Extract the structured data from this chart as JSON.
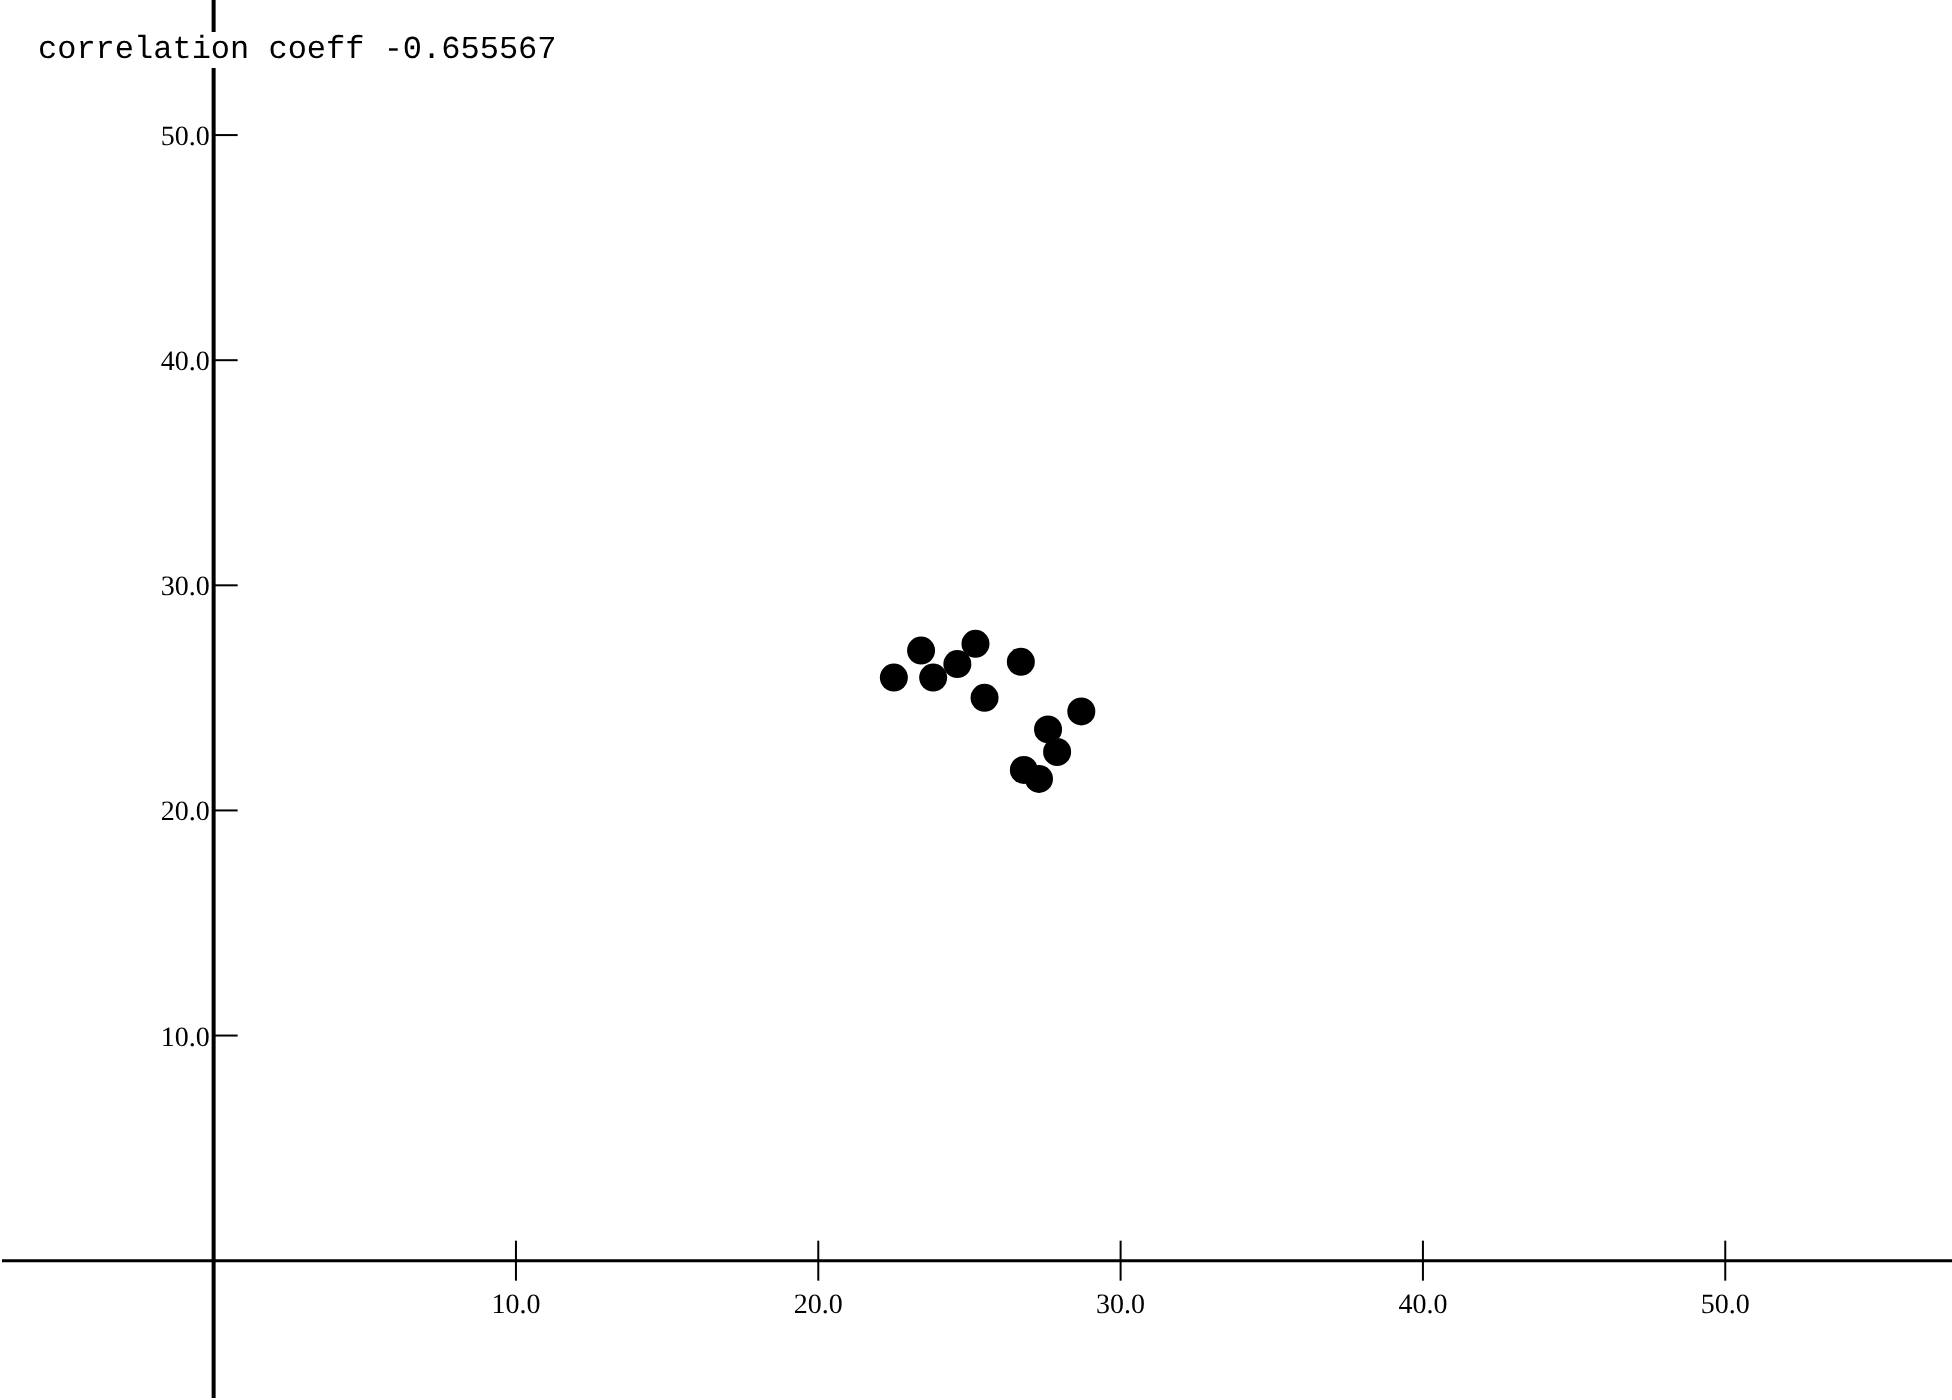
{
  "chart_data": {
    "type": "scatter",
    "title": "correlation coeff -0.655567",
    "x": [
      22.5,
      23.4,
      23.8,
      24.6,
      25.2,
      25.5,
      26.7,
      26.8,
      27.3,
      27.6,
      27.9,
      28.7
    ],
    "values": [
      25.9,
      27.1,
      25.9,
      26.5,
      27.4,
      25.0,
      26.6,
      21.8,
      21.4,
      23.6,
      22.6,
      24.4
    ],
    "color": "#000000",
    "marker": "circle",
    "xlim": [
      -7,
      57.5
    ],
    "ylim": [
      -6.1,
      56
    ],
    "xticks": [
      {
        "value": 10,
        "label": "10.0"
      },
      {
        "value": 20,
        "label": "20.0"
      },
      {
        "value": 30,
        "label": "30.0"
      },
      {
        "value": 40,
        "label": "40.0"
      },
      {
        "value": 50,
        "label": "50.0"
      }
    ],
    "yticks": [
      {
        "value": 10,
        "label": "10.0"
      },
      {
        "value": 20,
        "label": "20.0"
      },
      {
        "value": 30,
        "label": "30.0"
      },
      {
        "value": 40,
        "label": "40.0"
      },
      {
        "value": 50,
        "label": "50.0"
      }
    ],
    "grid": false
  }
}
